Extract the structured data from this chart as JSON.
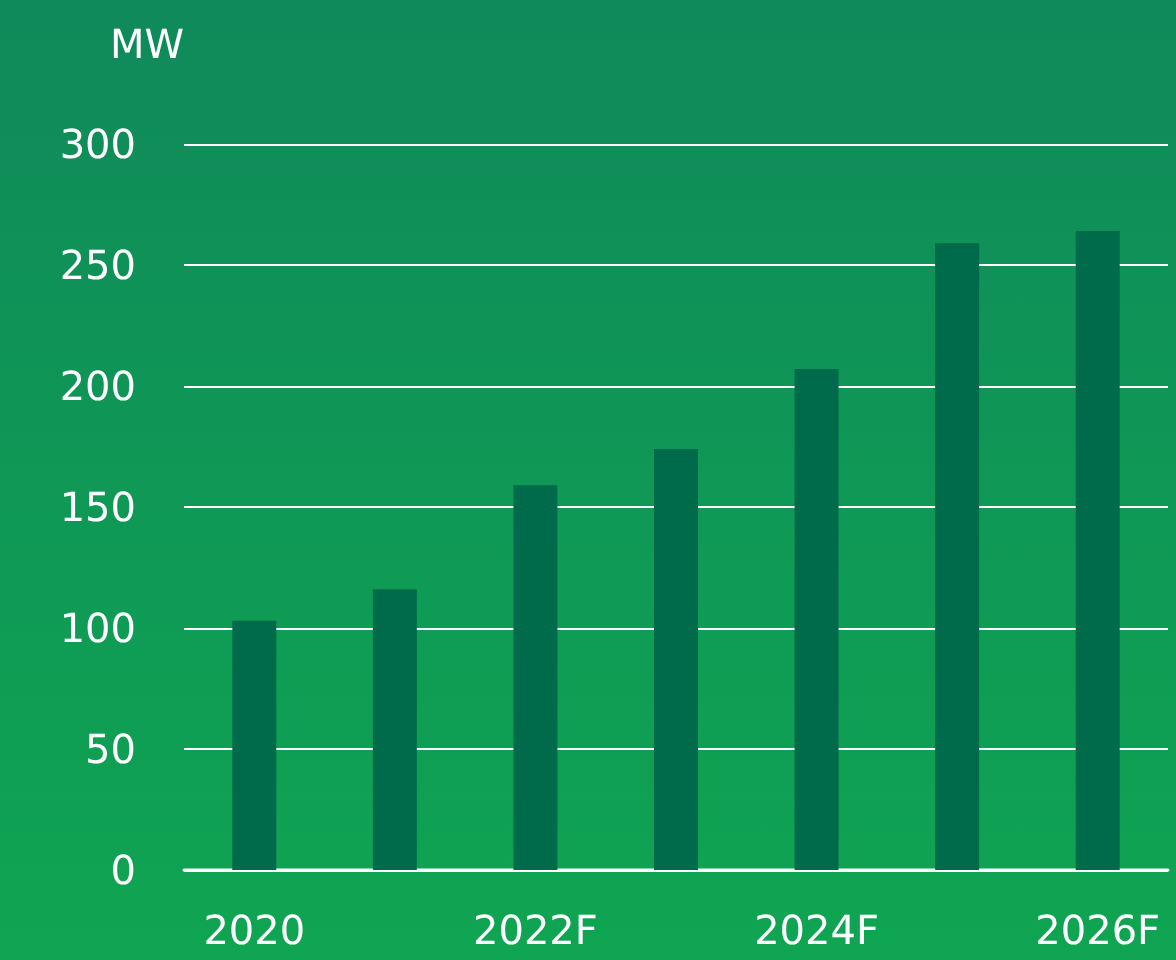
{
  "chart_data": {
    "type": "bar",
    "ylabel": "MW",
    "categories": [
      "2020",
      null,
      "2022F",
      null,
      "2024F",
      null,
      "2026F"
    ],
    "values": [
      103,
      116,
      159,
      174,
      207,
      259,
      264
    ],
    "color": "#006b4a",
    "ylim": [
      0,
      300
    ],
    "yticks": [
      0,
      50,
      100,
      150,
      200,
      250,
      300
    ],
    "grid": "y"
  }
}
